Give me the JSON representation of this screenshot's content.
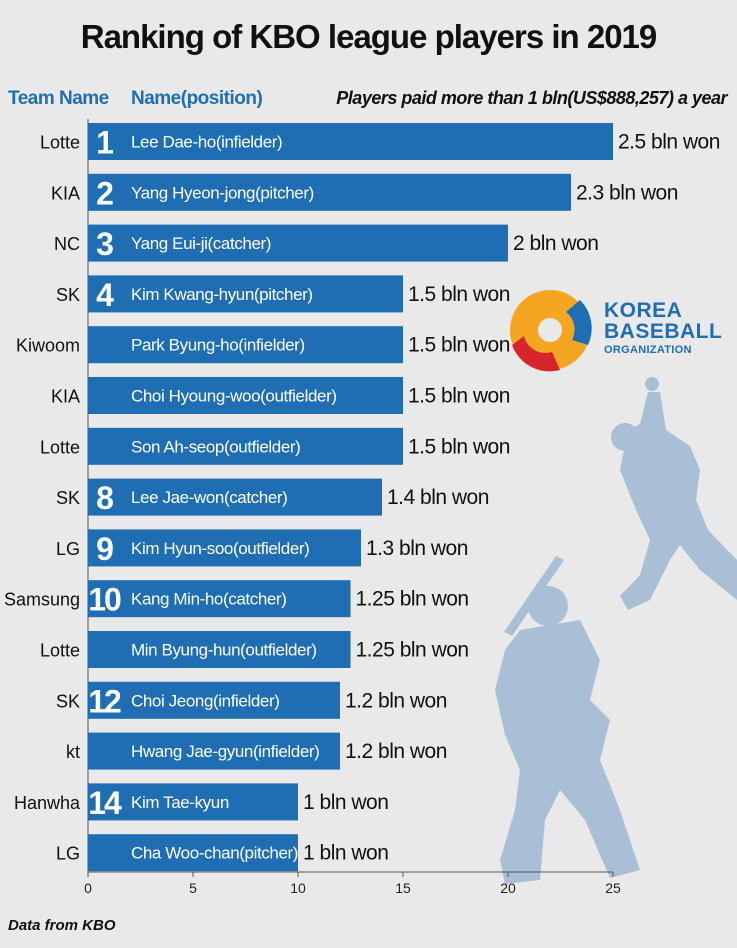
{
  "title": "Ranking of KBO league players in 2019",
  "headers": {
    "team": "Team Name",
    "name": "Name(position)",
    "note": "Players paid more than 1 bln(US$888,257) a year"
  },
  "source": "Data from KBO",
  "logo": {
    "line1": "KOREA",
    "line2": "BASEBALL",
    "line3": "ORGANIZATION"
  },
  "colors": {
    "bar": "#1f6db3",
    "background": "#e9e9e9",
    "silhouette": "#a9bfd6"
  },
  "chart_data": {
    "type": "bar",
    "orientation": "horizontal",
    "unit": "bln won",
    "xlim": [
      0,
      25
    ],
    "xticks": [
      0,
      5,
      10,
      15,
      20,
      25
    ],
    "rows": [
      {
        "rank": "1",
        "team": "Lotte",
        "name": "Lee Dae-ho(infielder)",
        "value": 2.5,
        "label": "2.5 bln won"
      },
      {
        "rank": "2",
        "team": "KIA",
        "name": "Yang Hyeon-jong(pitcher)",
        "value": 2.3,
        "label": "2.3 bln won"
      },
      {
        "rank": "3",
        "team": "NC",
        "name": "Yang Eui-ji(catcher)",
        "value": 2.0,
        "label": "2 bln won"
      },
      {
        "rank": "4",
        "team": "SK",
        "name": "Kim Kwang-hyun(pitcher)",
        "value": 1.5,
        "label": "1.5 bln won"
      },
      {
        "rank": "",
        "team": "Kiwoom",
        "name": "Park Byung-ho(infielder)",
        "value": 1.5,
        "label": "1.5 bln won"
      },
      {
        "rank": "",
        "team": "KIA",
        "name": "Choi Hyoung-woo(outfielder)",
        "value": 1.5,
        "label": "1.5 bln won"
      },
      {
        "rank": "",
        "team": "Lotte",
        "name": "Son Ah-seop(outfielder)",
        "value": 1.5,
        "label": "1.5 bln won"
      },
      {
        "rank": "8",
        "team": "SK",
        "name": "Lee Jae-won(catcher)",
        "value": 1.4,
        "label": "1.4 bln won"
      },
      {
        "rank": "9",
        "team": "LG",
        "name": "Kim Hyun-soo(outfielder)",
        "value": 1.3,
        "label": "1.3 bln won"
      },
      {
        "rank": "10",
        "team": "Samsung",
        "name": "Kang Min-ho(catcher)",
        "value": 1.25,
        "label": "1.25 bln won"
      },
      {
        "rank": "",
        "team": "Lotte",
        "name": "Min Byung-hun(outfielder)",
        "value": 1.25,
        "label": "1.25 bln won"
      },
      {
        "rank": "12",
        "team": "SK",
        "name": "Choi Jeong(infielder)",
        "value": 1.2,
        "label": "1.2 bln won"
      },
      {
        "rank": "",
        "team": "kt",
        "name": "Hwang Jae-gyun(infielder)",
        "value": 1.2,
        "label": "1.2 bln won"
      },
      {
        "rank": "14",
        "team": "Hanwha",
        "name": "Kim Tae-kyun",
        "value": 1.0,
        "label": "1 bln won"
      },
      {
        "rank": "",
        "team": "LG",
        "name": "Cha Woo-chan(pitcher)",
        "value": 1.0,
        "label": "1 bln won"
      }
    ]
  }
}
